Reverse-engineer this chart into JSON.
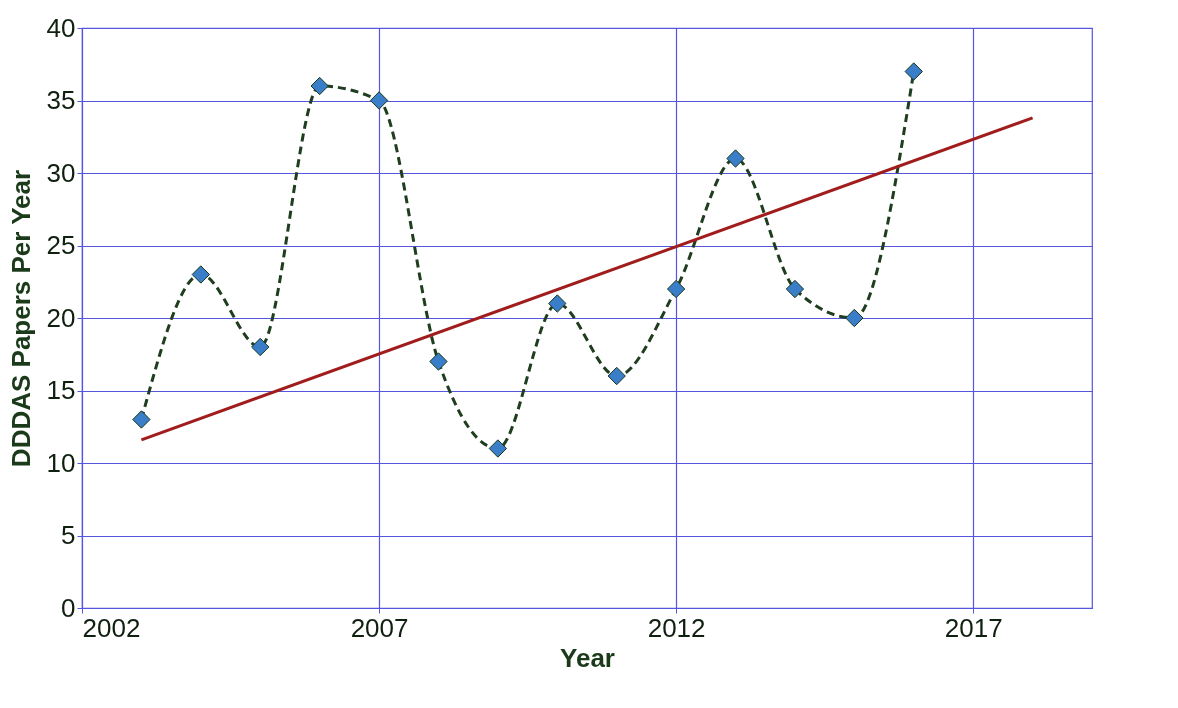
{
  "chart_data": {
    "type": "line",
    "xlabel": "Year",
    "ylabel": "DDDAS Papers Per Year",
    "xlim": [
      2002,
      2019
    ],
    "xticks": [
      2002,
      2007,
      2012,
      2017
    ],
    "ylim": [
      0,
      40
    ],
    "yticks": [
      0,
      5,
      10,
      15,
      20,
      25,
      30,
      35,
      40
    ],
    "grid": true,
    "series": [
      {
        "color": "#3a7dc9",
        "marker": "diamond",
        "line_style": "dashed",
        "x": [
          2003,
          2004,
          2005,
          2006,
          2007,
          2008,
          2009,
          2010,
          2011,
          2012,
          2013,
          2014,
          2015,
          2016
        ],
        "values": [
          13,
          23,
          18,
          36,
          35,
          17,
          11,
          21,
          16,
          22,
          31,
          22,
          20,
          37
        ]
      },
      {
        "color": "#a11d1d",
        "marker": "none",
        "line_style": "solid",
        "x": [
          2003,
          2018
        ],
        "values": [
          11.6,
          33.8
        ]
      }
    ]
  }
}
